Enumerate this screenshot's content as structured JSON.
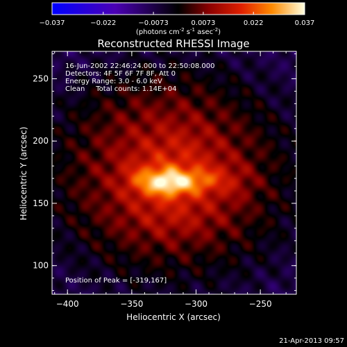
{
  "chart_data": {
    "type": "heatmap",
    "title": "Reconstructed RHESSI Image",
    "xlabel": "Heliocentric X (arcsec)",
    "ylabel": "Heliocentric Y (arcsec)",
    "xlim": [
      -412,
      -222
    ],
    "ylim": [
      77,
      272
    ],
    "x_ticks": [
      -400,
      -350,
      -300,
      -250
    ],
    "y_ticks": [
      100,
      150,
      200,
      250
    ],
    "colorbar": {
      "min": -0.037,
      "max": 0.037,
      "tick_values": [
        -0.037,
        -0.022,
        -0.0073,
        0.0073,
        0.022,
        0.037
      ],
      "tick_labels": [
        "-0.037",
        "-0.022",
        "-0.0073",
        "0.0073",
        "0.022",
        "0.037"
      ],
      "units_line1": "(photons cm",
      "units_exp1": "-2",
      "units_mid": " s",
      "units_exp2": "-1",
      "units_mid2": " asec",
      "units_exp3": "-2",
      "units_end": ")"
    },
    "annotations": [
      "16-Jun-2002 22:46:24.000 to 22:50:08.000",
      "Detectors: 4F 5F 6F 7F 8F, Att 0",
      "Energy Range: 3.0 - 6.0 keV",
      "Clean     Total counts: 1.14E+04"
    ],
    "peak_label": "Position of Peak = [-319,167]",
    "peak_position": [
      -319,
      167
    ],
    "sources": [
      {
        "x": -322,
        "y": 167,
        "sx": 14,
        "sy": 8,
        "amp": 0.023
      },
      {
        "x": -295,
        "y": 169,
        "sx": 10,
        "sy": 7,
        "amp": 0.009
      },
      {
        "x": -273,
        "y": 168,
        "sx": 12,
        "sy": 10,
        "amp": 0.005
      },
      {
        "x": -345,
        "y": 170,
        "sx": 10,
        "sy": 9,
        "amp": 0.006
      },
      {
        "x": -315,
        "y": 186,
        "sx": 22,
        "sy": 16,
        "amp": 0.004
      },
      {
        "x": -318,
        "y": 140,
        "sx": 26,
        "sy": 14,
        "amp": 0.004
      },
      {
        "x": -330,
        "y": 230,
        "sx": 40,
        "sy": 25,
        "amp": 0.002
      }
    ],
    "background": {
      "x": -320,
      "y": 172,
      "sx": 70,
      "sy": 60,
      "amp": 0.0105,
      "offset": -0.0105
    }
  },
  "footer": {
    "timestamp": "21-Apr-2013 09:57"
  }
}
